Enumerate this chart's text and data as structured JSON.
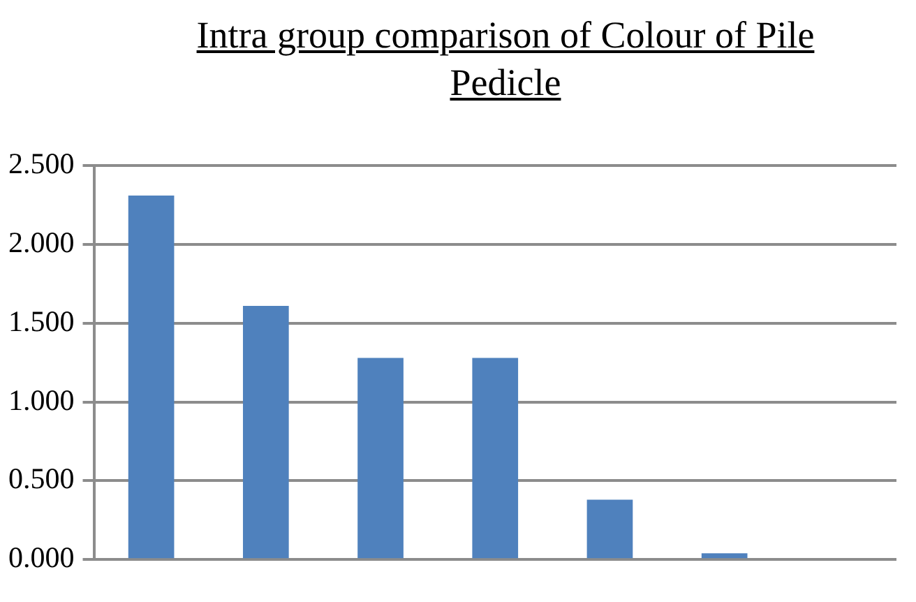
{
  "chart_data": {
    "type": "bar",
    "title": "Intra group comparison of Colour of Pile Pedicle",
    "categories": [
      null,
      null,
      null,
      null,
      null,
      null,
      null
    ],
    "values": [
      2.31,
      1.61,
      1.28,
      1.28,
      0.38,
      0.04,
      null
    ],
    "color": "#4f81bd",
    "ylim": [
      0,
      2.5
    ],
    "yticks": [
      {
        "value": 0,
        "label": "0.000"
      },
      {
        "value": 0.5,
        "label": "0.500"
      },
      {
        "value": 1,
        "label": "1.000"
      },
      {
        "value": 1.5,
        "label": "1.500"
      },
      {
        "value": 2,
        "label": "2.000"
      },
      {
        "value": 2.5,
        "label": "2.500"
      }
    ],
    "grid": "y",
    "legend": false
  }
}
